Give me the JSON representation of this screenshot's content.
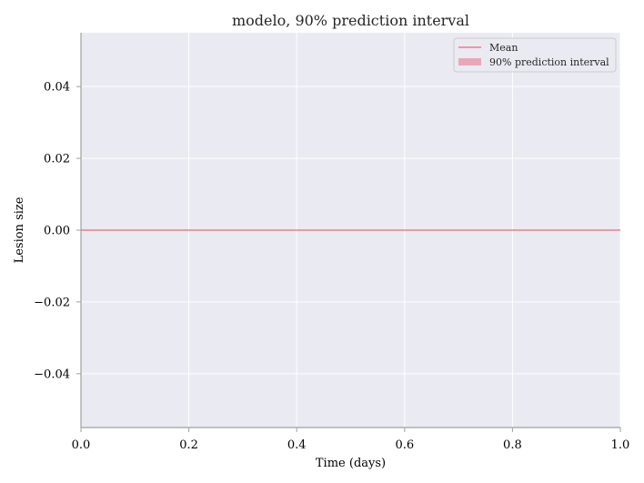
{
  "chart_data": {
    "type": "line",
    "title": "modelo, 90% prediction interval",
    "xlabel": "Time (days)",
    "ylabel": "Lesion size",
    "xlim": [
      0.0,
      1.0
    ],
    "ylim": [
      -0.055,
      0.055
    ],
    "xticks": [
      0.0,
      0.2,
      0.4,
      0.6,
      0.8,
      1.0
    ],
    "xtick_labels": [
      "0.0",
      "0.2",
      "0.4",
      "0.6",
      "0.8",
      "1.0"
    ],
    "yticks": [
      0.04,
      0.02,
      0.0,
      -0.02,
      -0.04
    ],
    "ytick_labels": [
      "0.04",
      "0.02",
      "0.00",
      "−0.02",
      "−0.04"
    ],
    "grid": true,
    "legend_position": "top-right",
    "series": [
      {
        "name": "Mean",
        "kind": "line",
        "color": "#f07a8a",
        "x": [
          0.0,
          1.0
        ],
        "y": [
          0.0,
          0.0
        ]
      },
      {
        "name": "90% prediction interval",
        "kind": "band",
        "color": "#e8a8b8",
        "x": [
          0.0,
          1.0
        ],
        "lower": [
          0.0,
          0.0
        ],
        "upper": [
          0.0,
          0.0
        ]
      }
    ],
    "colors": {
      "plot_background": "#eaeaf2",
      "grid": "#ffffff",
      "spine": "#a0a0a0"
    }
  }
}
